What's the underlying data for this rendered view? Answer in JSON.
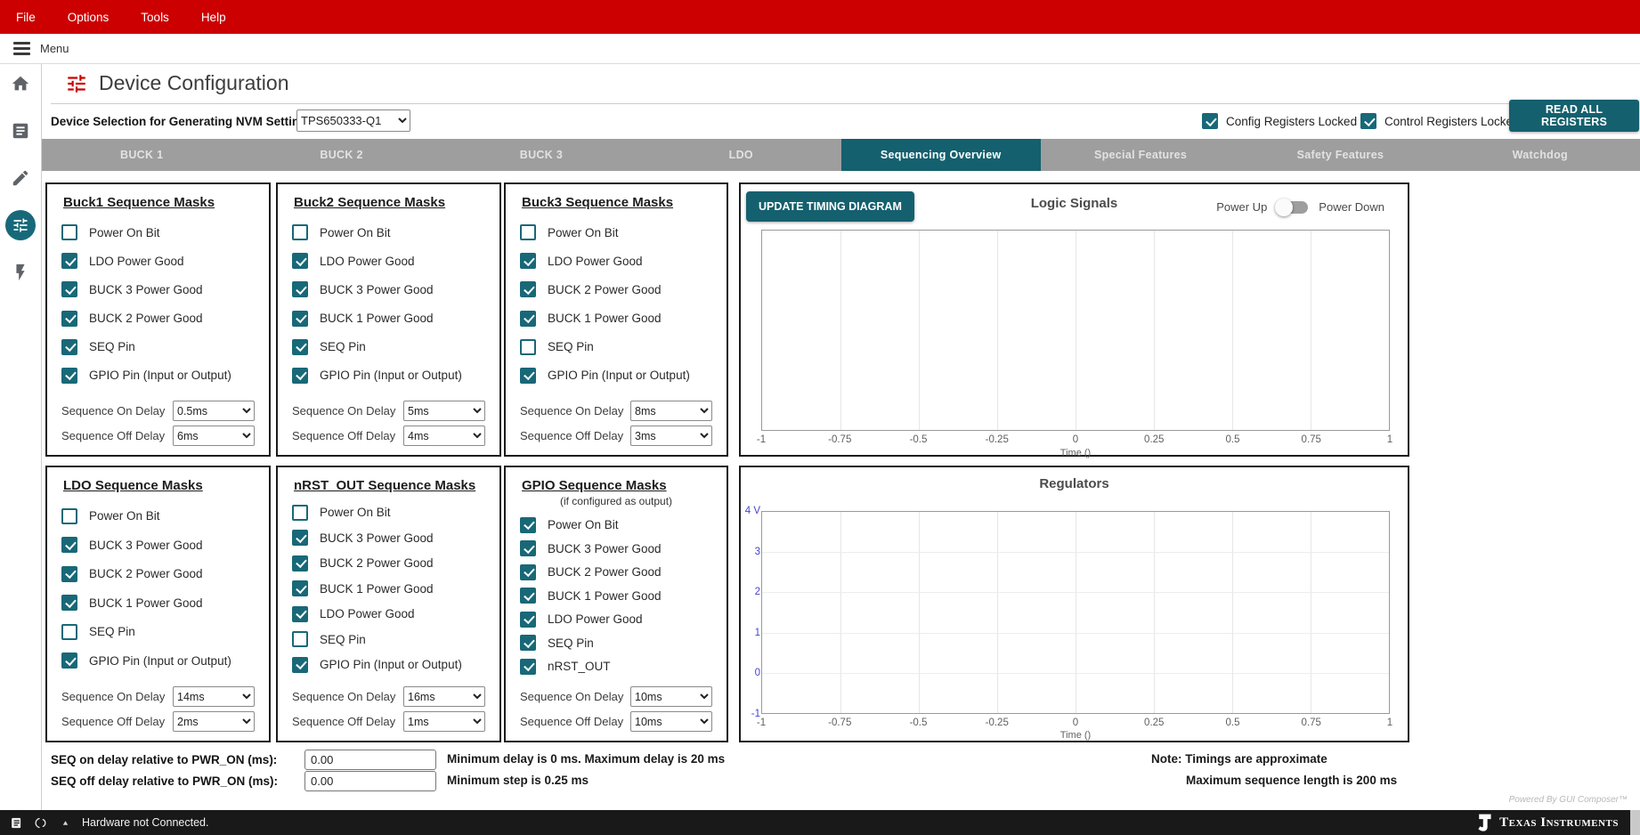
{
  "colors": {
    "ti_red": "#cc0000",
    "teal": "#14606e",
    "checkbox_teal": "#186878",
    "tab_gray": "#9e9e9e",
    "axis_blue": "#4343d4"
  },
  "menubar": {
    "items": [
      "File",
      "Options",
      "Tools",
      "Help"
    ]
  },
  "menu_row": {
    "label": "Menu"
  },
  "sidebar": {
    "icons": [
      {
        "name": "home",
        "active": false
      },
      {
        "name": "registers",
        "active": false
      },
      {
        "name": "edit",
        "active": false
      },
      {
        "name": "device-config",
        "active": true
      },
      {
        "name": "flash",
        "active": false
      }
    ]
  },
  "header": {
    "title": "Device Configuration",
    "device_selection_label": "Device Selection for Generating NVM Settings:",
    "device_selected": "TPS650333-Q1",
    "config_locked_label": "Config Registers Locked",
    "config_locked_checked": true,
    "control_locked_label": "Control Registers Locked",
    "control_locked_checked": true,
    "read_all_button": "READ ALL REGISTERS"
  },
  "tabs": [
    {
      "label": "BUCK 1",
      "active": false
    },
    {
      "label": "BUCK 2",
      "active": false
    },
    {
      "label": "BUCK 3",
      "active": false
    },
    {
      "label": "LDO",
      "active": false
    },
    {
      "label": "Sequencing Overview",
      "active": true
    },
    {
      "label": "Special Features",
      "active": false
    },
    {
      "label": "Safety Features",
      "active": false
    },
    {
      "label": "Watchdog",
      "active": false
    }
  ],
  "panel_common": {
    "on_delay_label": "Sequence On Delay",
    "off_delay_label": "Sequence Off Delay"
  },
  "panels": [
    {
      "title": "Buck1 Sequence Masks",
      "subtitle": "",
      "on_delay": "0.5ms",
      "off_delay": "6ms",
      "checkboxes": [
        {
          "label": "Power On Bit",
          "checked": false
        },
        {
          "label": "LDO Power Good",
          "checked": true
        },
        {
          "label": "BUCK 3 Power Good",
          "checked": true
        },
        {
          "label": "BUCK 2 Power Good",
          "checked": true
        },
        {
          "label": "SEQ Pin",
          "checked": true
        },
        {
          "label": "GPIO Pin (Input or Output)",
          "checked": true
        }
      ]
    },
    {
      "title": "Buck2 Sequence Masks",
      "subtitle": "",
      "on_delay": "5ms",
      "off_delay": "4ms",
      "checkboxes": [
        {
          "label": "Power On Bit",
          "checked": false
        },
        {
          "label": "LDO Power Good",
          "checked": true
        },
        {
          "label": "BUCK 3 Power Good",
          "checked": true
        },
        {
          "label": "BUCK 1 Power Good",
          "checked": true
        },
        {
          "label": "SEQ Pin",
          "checked": true
        },
        {
          "label": "GPIO Pin (Input or Output)",
          "checked": true
        }
      ]
    },
    {
      "title": "Buck3 Sequence Masks",
      "subtitle": "",
      "on_delay": "8ms",
      "off_delay": "3ms",
      "checkboxes": [
        {
          "label": "Power On Bit",
          "checked": false
        },
        {
          "label": "LDO Power Good",
          "checked": true
        },
        {
          "label": "BUCK 2 Power Good",
          "checked": true
        },
        {
          "label": "BUCK 1 Power Good",
          "checked": true
        },
        {
          "label": "SEQ Pin",
          "checked": false
        },
        {
          "label": "GPIO Pin (Input or Output)",
          "checked": true
        }
      ]
    },
    {
      "title": "LDO Sequence Masks",
      "subtitle": "",
      "on_delay": "14ms",
      "off_delay": "2ms",
      "checkboxes": [
        {
          "label": "Power On Bit",
          "checked": false
        },
        {
          "label": "BUCK 3 Power Good",
          "checked": true
        },
        {
          "label": "BUCK 2 Power Good",
          "checked": true
        },
        {
          "label": "BUCK 1 Power Good",
          "checked": true
        },
        {
          "label": "SEQ Pin",
          "checked": false
        },
        {
          "label": "GPIO Pin (Input or Output)",
          "checked": true
        }
      ]
    },
    {
      "title": "nRST_OUT Sequence Masks",
      "subtitle": "",
      "on_delay": "16ms",
      "off_delay": "1ms",
      "checkboxes": [
        {
          "label": "Power On Bit",
          "checked": false
        },
        {
          "label": "BUCK 3 Power Good",
          "checked": true
        },
        {
          "label": "BUCK 2 Power Good",
          "checked": true
        },
        {
          "label": "BUCK 1 Power Good",
          "checked": true
        },
        {
          "label": "LDO Power Good",
          "checked": true
        },
        {
          "label": "SEQ Pin",
          "checked": false
        },
        {
          "label": "GPIO Pin (Input or Output)",
          "checked": true
        }
      ]
    },
    {
      "title": "GPIO Sequence Masks",
      "subtitle": "(if configured as output)",
      "on_delay": "10ms",
      "off_delay": "10ms",
      "checkboxes": [
        {
          "label": "Power On Bit",
          "checked": true
        },
        {
          "label": "BUCK 3 Power Good",
          "checked": true
        },
        {
          "label": "BUCK 2 Power Good",
          "checked": true
        },
        {
          "label": "BUCK 1 Power Good",
          "checked": true
        },
        {
          "label": "LDO Power Good",
          "checked": true
        },
        {
          "label": "SEQ Pin",
          "checked": true
        },
        {
          "label": "nRST_OUT",
          "checked": true
        }
      ]
    }
  ],
  "timing": {
    "update_button": "UPDATE TIMING DIAGRAM",
    "power_up_label": "Power Up",
    "power_down_label": "Power Down",
    "toggle_state": "power_up"
  },
  "chart_data": [
    {
      "type": "line",
      "title": "Logic Signals",
      "xlabel": "Time ()",
      "xlim": [
        -1,
        1
      ],
      "x_ticks": [
        "-1",
        "-0.75",
        "-0.5",
        "-0.25",
        "0",
        "0.25",
        "0.5",
        "0.75",
        "1"
      ],
      "grid": "vertical-only",
      "legend": "none",
      "series": []
    },
    {
      "type": "line",
      "title": "Regulators",
      "xlabel": "Time ()",
      "xlim": [
        -1,
        1
      ],
      "ylim": [
        -1,
        4
      ],
      "x_ticks": [
        "-1",
        "-0.75",
        "-0.5",
        "-0.25",
        "0",
        "0.25",
        "0.5",
        "0.75",
        "1"
      ],
      "y_ticks": [
        "4 V",
        "3",
        "2",
        "1",
        "0",
        "-1"
      ],
      "grid": "both",
      "legend": "none",
      "series": []
    }
  ],
  "footer": {
    "seq_on_label": "SEQ on delay relative to PWR_ON (ms):",
    "seq_on_value": "0.00",
    "seq_off_label": "SEQ off delay relative to PWR_ON (ms):",
    "seq_off_value": "0.00",
    "min_max_note": "Minimum delay is 0 ms. Maximum delay is 20 ms",
    "min_step_note": "Minimum step is 0.25 ms",
    "note_line1": "Note: Timings are approximate",
    "note_line2": "Maximum sequence length is 200 ms",
    "powered_by": "Powered By GUI Composer™"
  },
  "statusbar": {
    "message": "Hardware not Connected.",
    "brand": "Texas Instruments"
  }
}
